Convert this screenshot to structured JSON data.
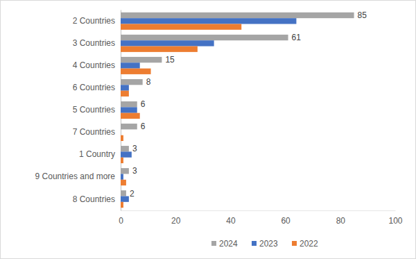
{
  "chart_data": {
    "type": "bar",
    "orientation": "horizontal",
    "categories": [
      "2 Countries",
      "3 Countries",
      "4 Countries",
      "6 Countries",
      "5 Countries",
      "7 Countries",
      "1 Country",
      "9 Countries and more",
      "8 Countries"
    ],
    "series": [
      {
        "name": "2024",
        "color": "#a5a5a5",
        "data_labels": true,
        "values": [
          85,
          61,
          15,
          8,
          6,
          6,
          3,
          3,
          2
        ]
      },
      {
        "name": "2023",
        "color": "#4472c4",
        "values": [
          64,
          34,
          7,
          3,
          6,
          0,
          4,
          1,
          3
        ]
      },
      {
        "name": "2022",
        "color": "#ed7d31",
        "values": [
          44,
          28,
          11,
          3,
          7,
          1,
          1,
          2,
          1
        ]
      }
    ],
    "xlim": [
      0,
      100
    ],
    "xticks": [
      0,
      20,
      40,
      60,
      80,
      100
    ],
    "grid": false,
    "legend": "bottom"
  }
}
